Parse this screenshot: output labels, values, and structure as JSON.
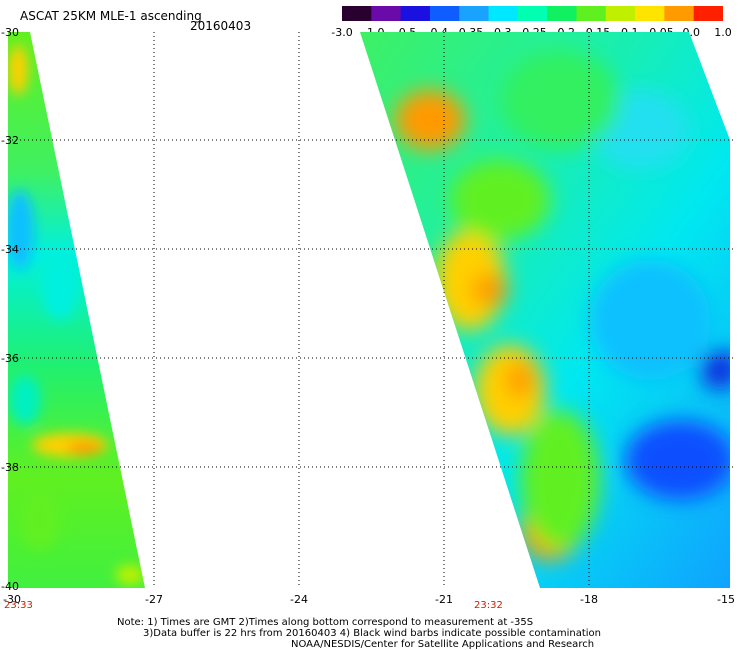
{
  "header": {
    "title": "ASCAT 25KM MLE-1 ascending",
    "date": "20160403"
  },
  "colorbar": {
    "labels": [
      "-3.0",
      "-1.0",
      "-0.5",
      "-0.4",
      "-0.35",
      "-0.3",
      "-0.25",
      "-0.2",
      "-0.15",
      "-0.1",
      "-0.05",
      "0.0",
      "1.0"
    ],
    "colors": [
      "#2a0030",
      "#6a0aa8",
      "#1a10e0",
      "#0f5cff",
      "#1aa2ff",
      "#00e8ff",
      "#00ffb0",
      "#10f060",
      "#60f020",
      "#c0f000",
      "#ffe400",
      "#ff9a00",
      "#ff2000"
    ]
  },
  "map": {
    "lat_labels": [
      "-30",
      "-32",
      "-34",
      "-36",
      "-38",
      "-40"
    ],
    "lon_labels": [
      "-30",
      "-27",
      "-24",
      "-21",
      "-18",
      "-15"
    ],
    "swath_times": [
      "23:33",
      "23:32"
    ]
  },
  "notes": {
    "line1": "Note: 1) Times are GMT 2)Times along bottom correspond to measurement at -35S",
    "line2": "3)Data buffer is 22 hrs from 20160403 4) Black wind barbs indicate possible contamination",
    "line3": "NOAA/NESDIS/Center for Satellite Applications and Research"
  }
}
